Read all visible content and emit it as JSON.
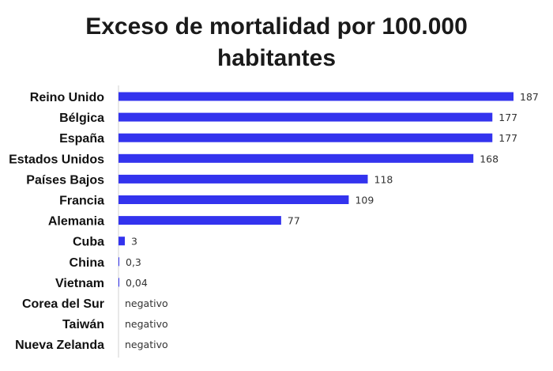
{
  "chart_data": {
    "type": "bar",
    "orientation": "horizontal",
    "title": "Exceso de mortalidad por 100.000 habitantes",
    "title_lines": [
      "Exceso de mortalidad por 100.000",
      "habitantes"
    ],
    "categories": [
      "Reino Unido",
      "Bélgica",
      "España",
      "Estados Unidos",
      "Países Bajos",
      "Francia",
      "Alemania",
      "Cuba",
      "China",
      "Vietnam",
      "Corea del Sur",
      "Taiwán",
      "Nueva Zelanda"
    ],
    "values": [
      187,
      177,
      177,
      168,
      118,
      109,
      77,
      3,
      0.3,
      0.04,
      0,
      0,
      0
    ],
    "data_labels": [
      "187",
      "177",
      "177",
      "168",
      "118",
      "109",
      "77",
      "3",
      "0,3",
      "0,04",
      "negativo",
      "negativo",
      "negativo"
    ],
    "bar_color": "#3333ee",
    "xlim": [
      0,
      187
    ],
    "grid": false,
    "legend": "none"
  }
}
